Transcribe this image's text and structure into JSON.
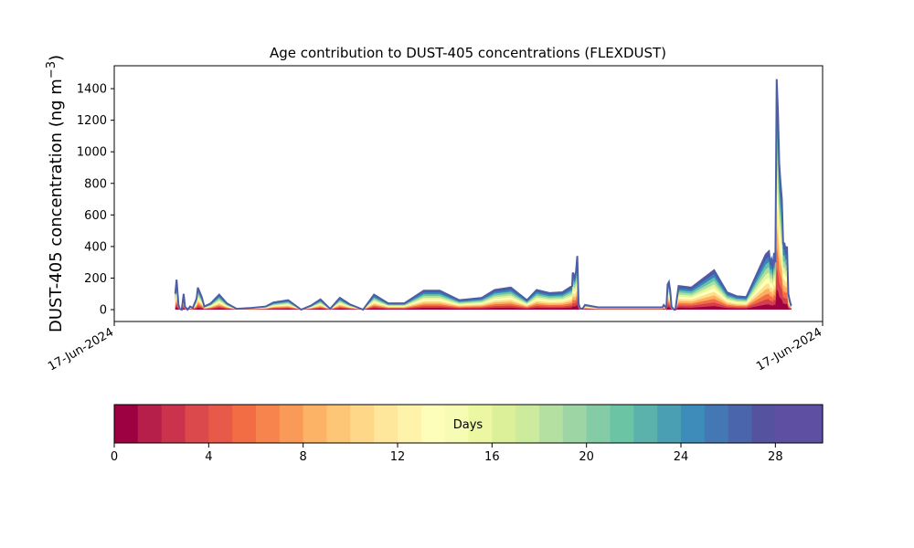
{
  "chart_data": {
    "type": "area",
    "title": "Age contribution to DUST-405 concentrations (FLEXDUST)",
    "xlabel": "",
    "ylabel": "DUST-405 concentration (ng m",
    "ylabel_sup": "−3",
    "ylabel_close": ")",
    "ylim": [
      -75,
      1545
    ],
    "yticks": [
      0,
      200,
      400,
      600,
      800,
      1000,
      1200,
      1400
    ],
    "xlim": [
      0,
      1
    ],
    "xtick_labels": [
      "17-Jun-2024",
      "17-Jun-2024"
    ],
    "grid": false,
    "x": [
      0.045,
      0.047,
      0.05,
      0.052,
      0.055,
      0.058,
      0.06,
      0.064,
      0.068,
      0.072,
      0.078,
      0.08,
      0.086,
      0.09,
      0.1,
      0.113,
      0.125,
      0.14,
      0.16,
      0.185,
      0.197,
      0.22,
      0.24,
      0.255,
      0.27,
      0.285,
      0.3,
      0.315,
      0.336,
      0.353,
      0.375,
      0.4,
      0.43,
      0.455,
      0.485,
      0.52,
      0.54,
      0.565,
      0.59,
      0.605,
      0.625,
      0.645,
      0.66,
      0.66,
      0.661,
      0.662,
      0.664,
      0.666,
      0.668,
      0.67,
      0.672,
      0.676,
      0.68,
      0.7,
      0.8,
      0.8,
      0.802,
      0.806,
      0.808,
      0.81,
      0.812,
      0.814,
      0.818,
      0.82,
      0.825,
      0.845,
      0.88,
      0.9,
      0.915,
      0.93,
      0.96,
      0.965,
      0.967,
      0.969,
      0.971,
      0.973,
      0.975,
      0.977,
      0.979,
      0.981,
      0.983,
      0.985,
      0.987,
      0.989,
      0.991,
      0.993,
      0.995,
      0.997,
      0.999,
      1.0
    ],
    "total": [
      100,
      190,
      30,
      5,
      0,
      100,
      20,
      0,
      20,
      10,
      70,
      140,
      80,
      20,
      40,
      95,
      40,
      5,
      10,
      20,
      45,
      60,
      0,
      25,
      65,
      5,
      75,
      35,
      0,
      95,
      40,
      40,
      120,
      120,
      60,
      75,
      125,
      140,
      60,
      125,
      105,
      110,
      150,
      150,
      235,
      225,
      210,
      240,
      340,
      40,
      10,
      5,
      30,
      15,
      15,
      15,
      30,
      10,
      160,
      175,
      120,
      20,
      0,
      0,
      150,
      140,
      250,
      110,
      85,
      80,
      350,
      370,
      300,
      320,
      260,
      360,
      300,
      1460,
      1250,
      920,
      800,
      700,
      420,
      420,
      380,
      400,
      100,
      60,
      30,
      35
    ],
    "color_layers": [
      "#9e0142",
      "#d53e4f",
      "#f46d43",
      "#fdae61",
      "#fee08b",
      "#ffffbf",
      "#e6f598",
      "#abdda4",
      "#66c2a5",
      "#3288bd",
      "#5e4fa2"
    ],
    "colorbar": {
      "label": "Days",
      "min": 0,
      "max": 30,
      "levels": 30,
      "ticks": [
        0,
        4,
        8,
        12,
        16,
        20,
        24,
        28
      ],
      "colors": [
        "#9e0142",
        "#b51f49",
        "#cb334d",
        "#dc494c",
        "#e75948",
        "#f26c44",
        "#f7834d",
        "#fa9a58",
        "#fdb365",
        "#fdc676",
        "#fed888",
        "#fee79a",
        "#fff2aa",
        "#fefebb",
        "#f7fcb4",
        "#ecf7a1",
        "#dcf09a",
        "#cceb9d",
        "#b4e0a2",
        "#9dd6a4",
        "#83cca5",
        "#6bc4a4",
        "#5bb1ab",
        "#4a9fb3",
        "#3d8cb9",
        "#4378b4",
        "#4a65ab",
        "#5553a0",
        "#5e4fa2",
        "#5e4fa2"
      ]
    }
  }
}
